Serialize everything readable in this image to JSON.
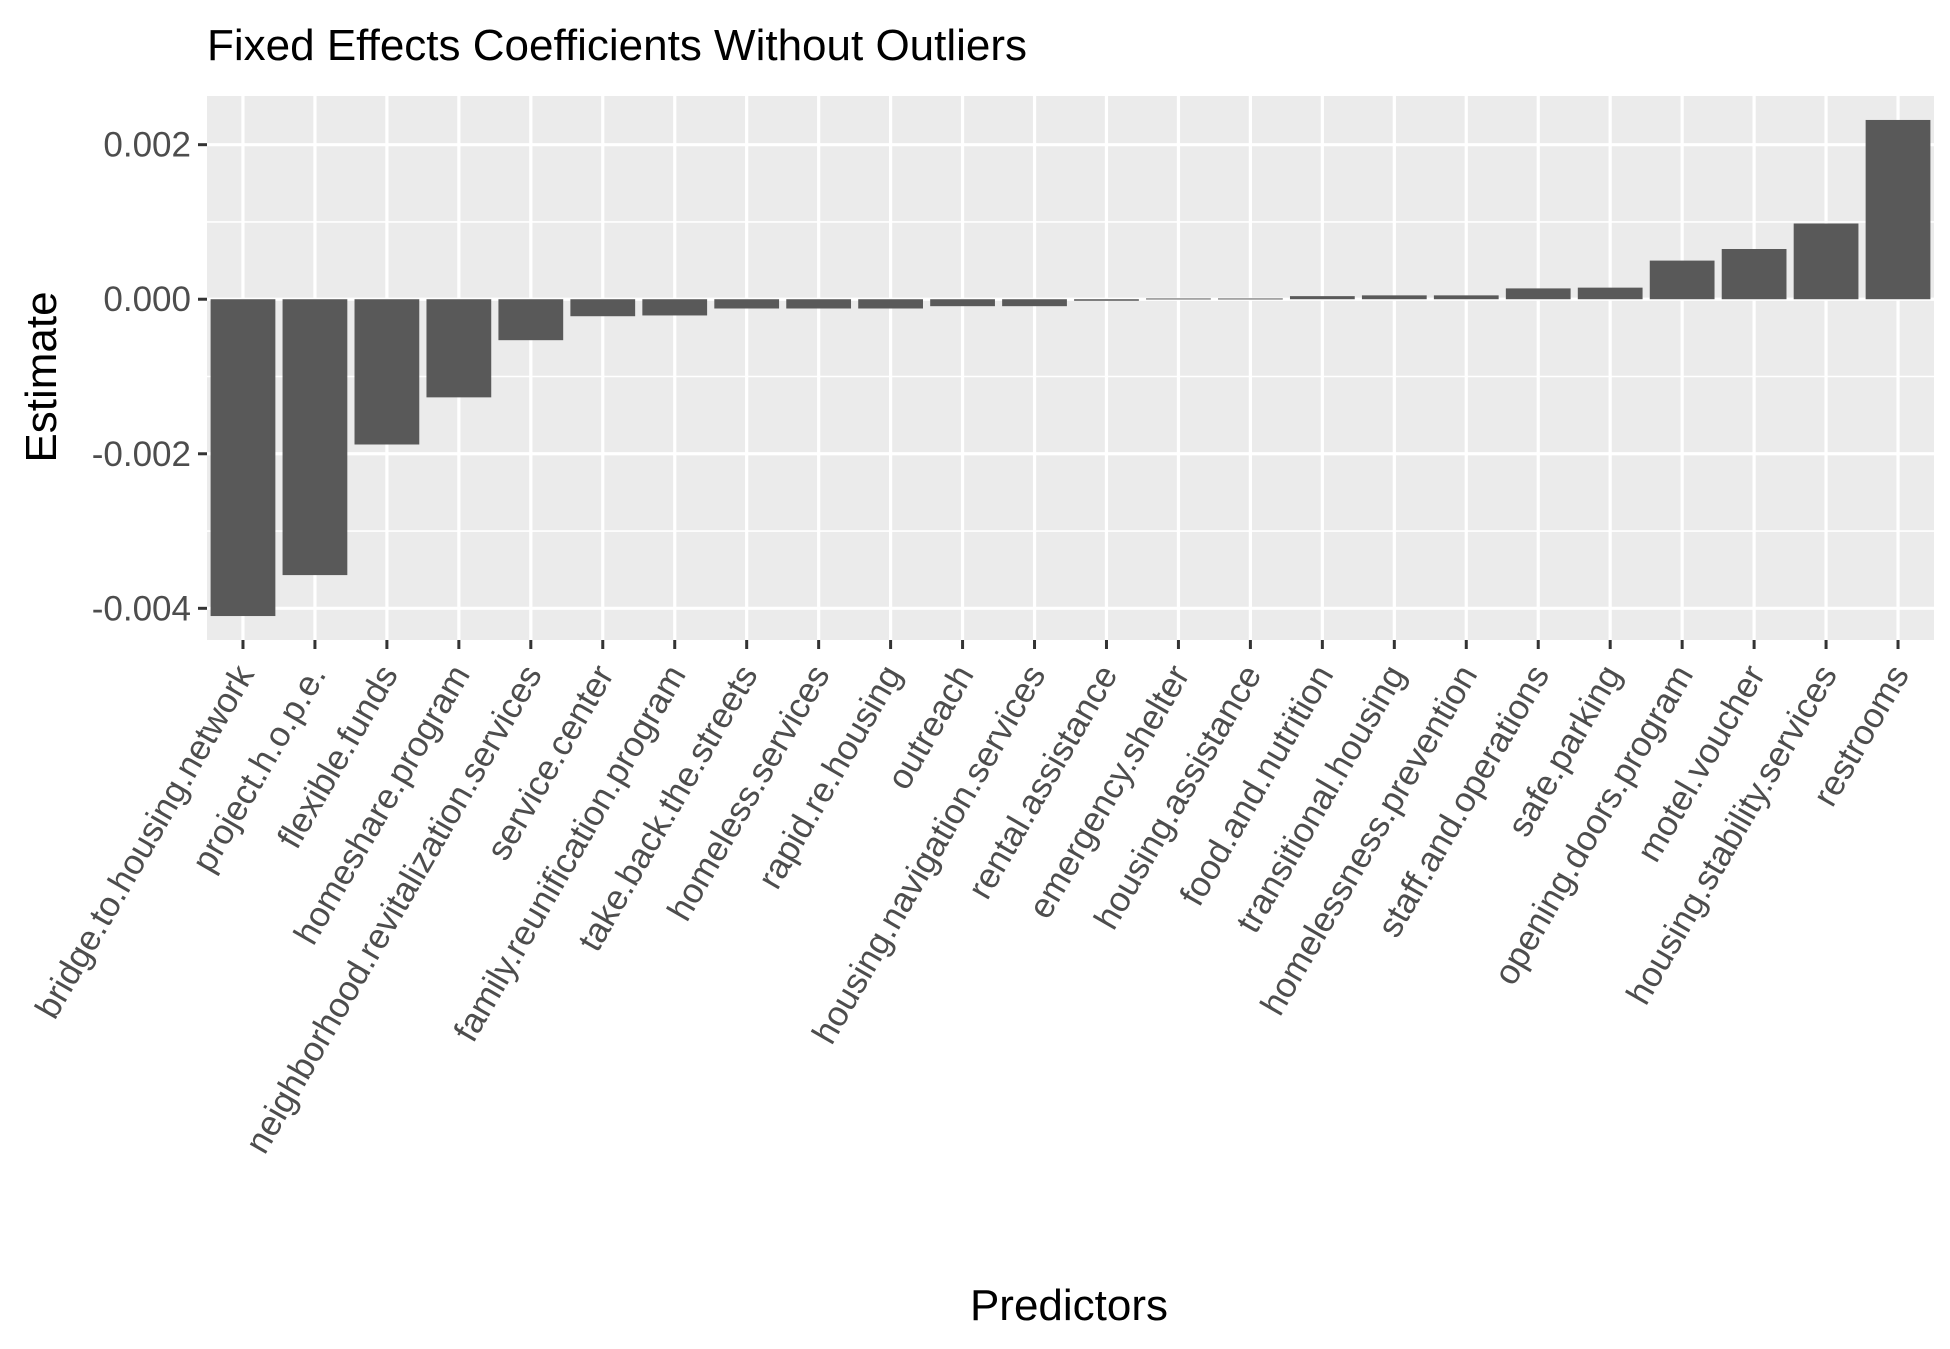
{
  "chart_data": {
    "type": "bar",
    "title": "Fixed Effects Coefficients Without Outliers",
    "xlabel": "Predictors",
    "ylabel": "Estimate",
    "ylim": [
      -0.00441,
      0.00263
    ],
    "y_ticks": [
      {
        "value": 0.002,
        "label": "0.002"
      },
      {
        "value": 0.0,
        "label": "0.000"
      },
      {
        "value": -0.002,
        "label": "-0.002"
      },
      {
        "value": -0.004,
        "label": "-0.004"
      }
    ],
    "grid": true,
    "legend": "none",
    "bar_color": "#595959",
    "panel_color": "#ebebeb",
    "grid_color": "#ffffff",
    "categories": [
      "bridge.to.housing.network",
      "project.h.o.p.e.",
      "flexible.funds",
      "homeshare.program",
      "neighborhood.revitalization.services",
      "service.center",
      "family.reunification.program",
      "take.back.the.streets",
      "homeless.services",
      "rapid.re.housing",
      "outreach",
      "housing.navigation.services",
      "rental.assistance",
      "emergency.shelter",
      "housing.assistance",
      "food.and.nutrition",
      "transitional.housing",
      "homelessness.prevention",
      "staff.and.operations",
      "safe.parking",
      "opening.doors.program",
      "motel.voucher",
      "housing.stability.services",
      "restrooms"
    ],
    "values": [
      -0.0041,
      -0.00357,
      -0.00188,
      -0.00127,
      -0.00053,
      -0.00022,
      -0.00021,
      -0.00012,
      -0.00012,
      -0.00012,
      -9e-05,
      -9e-05,
      -2e-05,
      1e-05,
      1e-05,
      4e-05,
      5e-05,
      5e-05,
      0.00014,
      0.00015,
      0.0005,
      0.00065,
      0.00098,
      0.00232
    ]
  }
}
